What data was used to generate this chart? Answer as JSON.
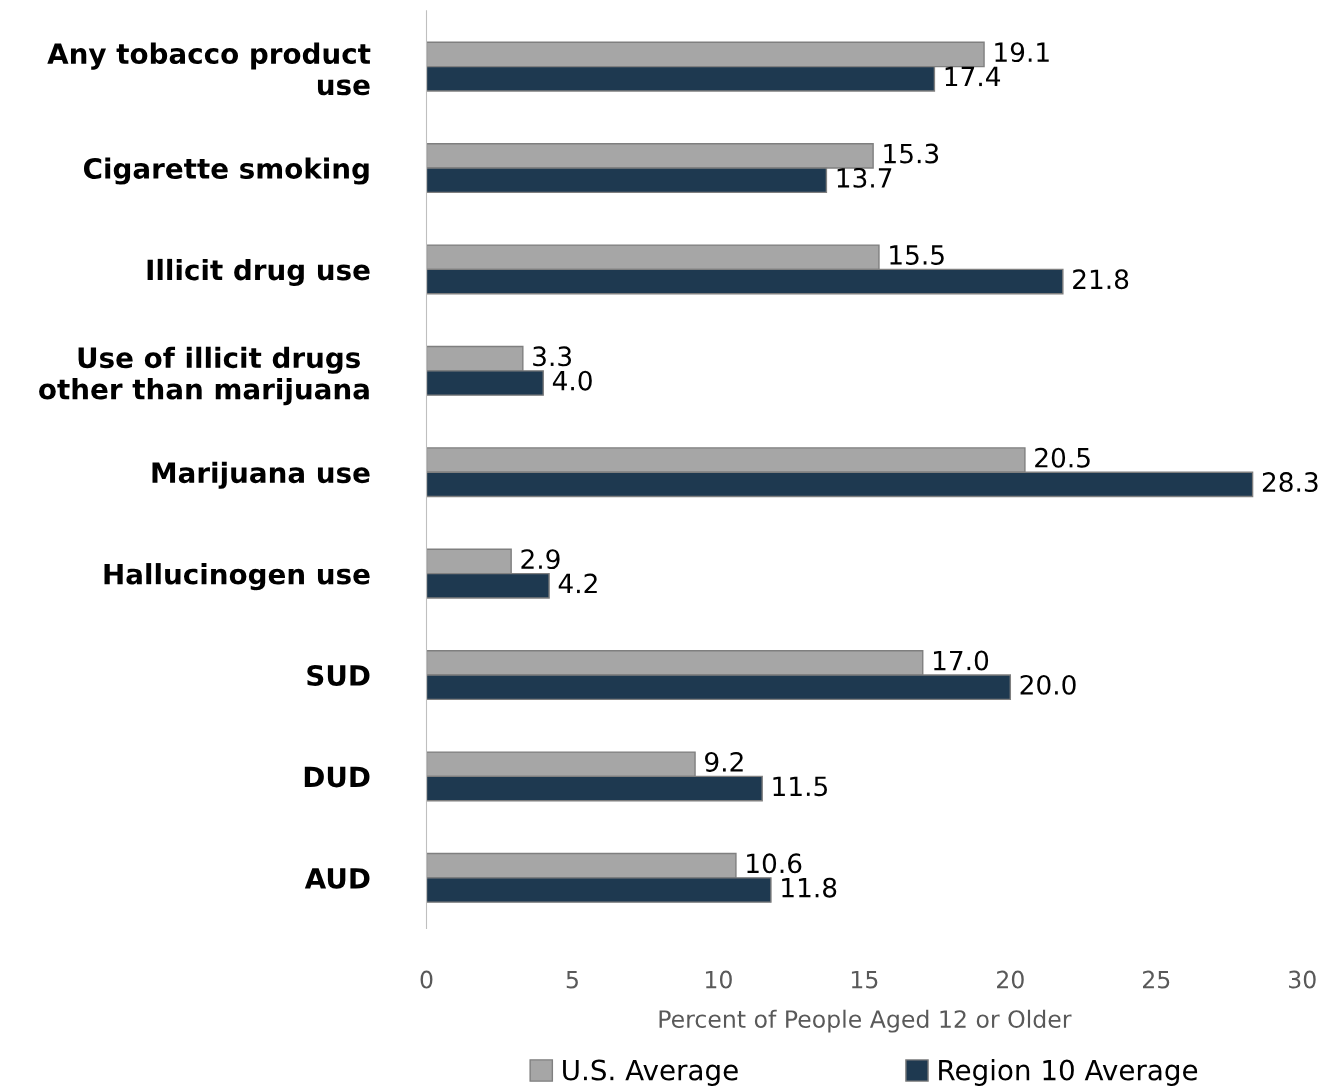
{
  "chart_data": {
    "type": "bar",
    "orientation": "horizontal",
    "xlabel": "Percent of People Aged 12 or Older",
    "categories": [
      "Any tobacco product\nuse",
      "Cigarette smoking",
      "Illicit drug use",
      "Use of illicit drugs \nother than marijuana",
      "Marijuana use",
      "Hallucinogen use",
      "SUD",
      "DUD",
      "AUD"
    ],
    "series": [
      {
        "name": "U.S. Average",
        "color": "#a6a6a6",
        "values": [
          19.1,
          15.3,
          15.5,
          3.3,
          20.5,
          2.9,
          17.0,
          9.2,
          10.6
        ],
        "value_labels": [
          "19.1",
          "15.3",
          "15.5",
          "3.3",
          "20.5",
          "2.9",
          "17.0",
          "9.2",
          "10.6"
        ]
      },
      {
        "name": "Region 10 Average",
        "color": "#1e3950",
        "values": [
          17.4,
          13.7,
          21.8,
          4.0,
          28.3,
          4.2,
          20.0,
          11.5,
          11.8
        ],
        "value_labels": [
          "17.4",
          "13.7",
          "21.8",
          "4.0",
          "28.3",
          "4.2",
          "20.0",
          "11.5",
          "11.8"
        ]
      }
    ],
    "xlim": [
      0,
      30
    ],
    "xticks": [
      0,
      5,
      10,
      15,
      20,
      25,
      30
    ],
    "grid": false,
    "legend": "bottom"
  }
}
